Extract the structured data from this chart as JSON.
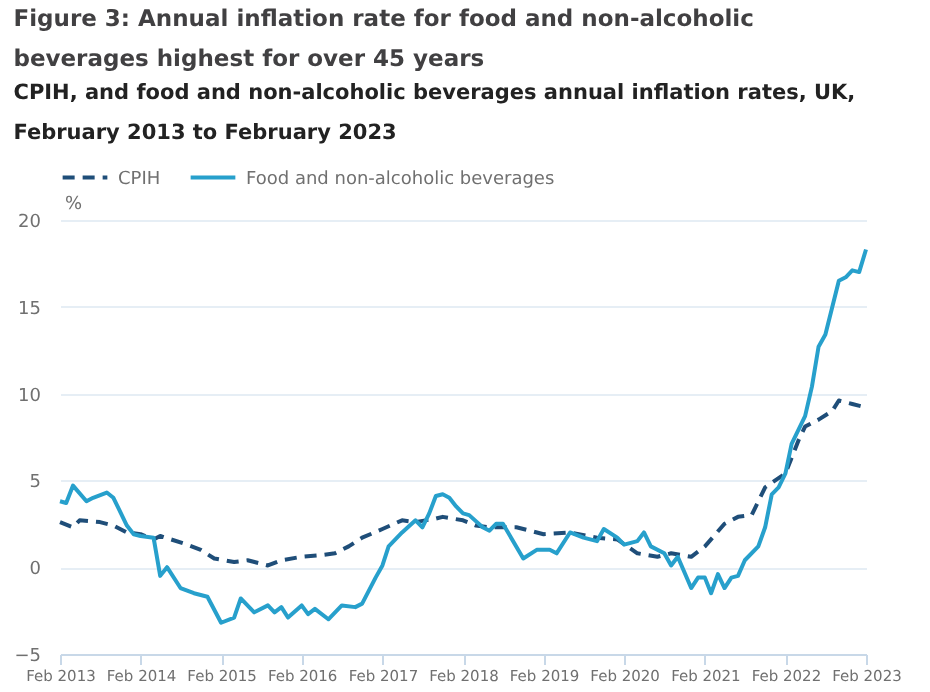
{
  "chart_data": {
    "type": "line",
    "title": [
      "Figure 3: Annual inflation rate for food and non-alcoholic",
      "beverages highest for over 45 years"
    ],
    "subtitle": [
      "CPIH, and food and non-alcoholic beverages annual inflation rates, UK,",
      "February 2013 to February 2023"
    ],
    "ylabel": "%",
    "xlim": [
      "2013-02",
      "2023-02"
    ],
    "xticks": [
      {
        "value": "2013-02",
        "label": "Feb 2013"
      },
      {
        "value": "2014-02",
        "label": "Feb 2014"
      },
      {
        "value": "2015-02",
        "label": "Feb 2015"
      },
      {
        "value": "2016-02",
        "label": "Feb 2016"
      },
      {
        "value": "2017-02",
        "label": "Feb 2017"
      },
      {
        "value": "2018-02",
        "label": "Feb 2018"
      },
      {
        "value": "2019-02",
        "label": "Feb 2019"
      },
      {
        "value": "2020-02",
        "label": "Feb 2020"
      },
      {
        "value": "2021-02",
        "label": "Feb 2021"
      },
      {
        "value": "2022-02",
        "label": "Feb 2022"
      },
      {
        "value": "2023-02",
        "label": "Feb 2023"
      }
    ],
    "ylim": [
      -5,
      20
    ],
    "yticks": [
      -5,
      0,
      5,
      10,
      15,
      20
    ],
    "grid": "y",
    "legend": "top left",
    "series": [
      {
        "name": "CPIH",
        "color": "#1f4e79",
        "line_style": "dashed",
        "x": [
          "2013-02",
          "2013-04",
          "2013-05",
          "2013-08",
          "2013-10",
          "2013-12",
          "2014-02",
          "2014-04",
          "2014-05",
          "2014-09",
          "2014-11",
          "2015-01",
          "2015-04",
          "2015-06",
          "2015-09",
          "2015-11",
          "2016-02",
          "2016-05",
          "2016-07",
          "2016-09",
          "2016-11",
          "2017-02",
          "2017-05",
          "2017-07",
          "2017-10",
          "2017-11",
          "2018-02",
          "2018-04",
          "2018-06",
          "2018-10",
          "2019-02",
          "2019-06",
          "2019-10",
          "2020-01",
          "2020-04",
          "2020-07",
          "2020-09",
          "2020-12",
          "2021-02",
          "2021-05",
          "2021-07",
          "2021-09",
          "2021-11",
          "2022-02",
          "2022-04",
          "2022-05",
          "2022-07",
          "2022-09",
          "2022-10",
          "2022-12",
          "2023-02"
        ],
        "values": [
          2.6,
          2.3,
          2.7,
          2.6,
          2.4,
          2.0,
          1.9,
          1.6,
          1.8,
          1.3,
          1.0,
          0.5,
          0.3,
          0.4,
          0.1,
          0.4,
          0.6,
          0.7,
          0.8,
          1.2,
          1.7,
          2.2,
          2.7,
          2.6,
          2.8,
          2.9,
          2.7,
          2.4,
          2.3,
          2.3,
          1.9,
          2.0,
          1.7,
          1.6,
          0.8,
          0.6,
          0.8,
          0.6,
          1.2,
          2.5,
          2.9,
          3.0,
          4.6,
          5.4,
          7.3,
          8.1,
          8.5,
          9.0,
          9.6,
          9.4,
          9.2
        ]
      },
      {
        "name": "Food and non-alcoholic beverages",
        "color": "#27a0cc",
        "line_style": "solid",
        "x": [
          "2013-02",
          "2013-03",
          "2013-04",
          "2013-06",
          "2013-07",
          "2013-09",
          "2013-10",
          "2013-12",
          "2014-01",
          "2014-02",
          "2014-04",
          "2014-05",
          "2014-06",
          "2014-08",
          "2014-10",
          "2014-12",
          "2015-02",
          "2015-04",
          "2015-05",
          "2015-07",
          "2015-09",
          "2015-10",
          "2015-11",
          "2015-12",
          "2016-02",
          "2016-03",
          "2016-04",
          "2016-06",
          "2016-08",
          "2016-10",
          "2016-11",
          "2017-01",
          "2017-02",
          "2017-03",
          "2017-05",
          "2017-07",
          "2017-08",
          "2017-09",
          "2017-10",
          "2017-11",
          "2017-12",
          "2018-01",
          "2018-02",
          "2018-03",
          "2018-05",
          "2018-06",
          "2018-07",
          "2018-08",
          "2018-11",
          "2019-01",
          "2019-03",
          "2019-04",
          "2019-06",
          "2019-08",
          "2019-10",
          "2019-11",
          "2020-01",
          "2020-02",
          "2020-04",
          "2020-05",
          "2020-06",
          "2020-08",
          "2020-09",
          "2020-10",
          "2020-12",
          "2021-01",
          "2021-02",
          "2021-03",
          "2021-04",
          "2021-05",
          "2021-06",
          "2021-07",
          "2021-08",
          "2021-10",
          "2021-11",
          "2021-12",
          "2022-01",
          "2022-02",
          "2022-03",
          "2022-05",
          "2022-06",
          "2022-07",
          "2022-08",
          "2022-10",
          "2022-11",
          "2022-12",
          "2023-01",
          "2023-02"
        ],
        "values": [
          3.8,
          3.7,
          4.7,
          3.8,
          4.0,
          4.3,
          4.0,
          2.4,
          1.9,
          1.8,
          1.7,
          -0.5,
          0.0,
          -1.2,
          -1.5,
          -1.7,
          -3.2,
          -2.9,
          -1.8,
          -2.6,
          -2.2,
          -2.6,
          -2.3,
          -2.9,
          -2.2,
          -2.7,
          -2.4,
          -3.0,
          -2.2,
          -2.3,
          -2.1,
          -0.6,
          0.1,
          1.2,
          2.0,
          2.7,
          2.3,
          3.1,
          4.1,
          4.2,
          4.0,
          3.5,
          3.1,
          3.0,
          2.3,
          2.1,
          2.5,
          2.5,
          0.5,
          1.0,
          1.0,
          0.8,
          2.0,
          1.7,
          1.5,
          2.2,
          1.7,
          1.3,
          1.5,
          2.0,
          1.2,
          0.8,
          0.1,
          0.6,
          -1.2,
          -0.6,
          -0.6,
          -1.5,
          -0.4,
          -1.2,
          -0.6,
          -0.5,
          0.4,
          1.2,
          2.3,
          4.2,
          4.6,
          5.4,
          7.1,
          8.7,
          10.4,
          12.7,
          13.4,
          16.5,
          16.7,
          17.1,
          17.0,
          18.3
        ]
      }
    ]
  }
}
